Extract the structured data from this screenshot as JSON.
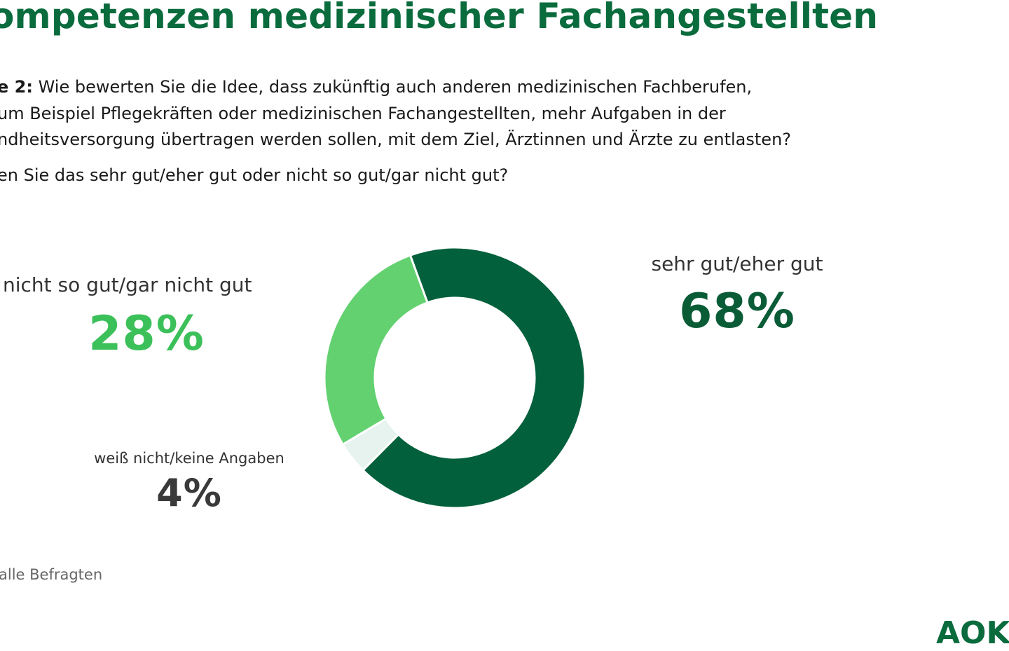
{
  "header": {
    "title": "ompetenzen medizinischer Fachangestellten"
  },
  "question": {
    "lead": "e 2:",
    "line1": "Wie bewerten Sie die Idee, dass zukünftig auch anderen medizinischen Fachberufen,",
    "line2": "um Beispiel Pflegekräften oder medizinischen Fachangestellten, mehr Aufgaben in der",
    "line3": "ndheitsversorgung übertragen werden sollen, mit dem Ziel, Ärztinnen und Ärzte zu entlasten?",
    "line4": "en Sie das sehr gut/eher gut oder nicht so gut/gar nicht gut?"
  },
  "chart_data": {
    "type": "pie",
    "series": [
      {
        "name": "sehr gut/eher gut",
        "value": 68,
        "label": "68%",
        "color": "#03603c"
      },
      {
        "name": "weiß nicht/keine Angaben",
        "value": 4,
        "label": "4%",
        "color": "#e6f3ef"
      },
      {
        "name": "nicht so gut/gar nicht gut",
        "value": 28,
        "label": "28%",
        "color": "#63d170"
      }
    ]
  },
  "footer": {
    "base": "alle Befragten",
    "logo": "AOK"
  }
}
